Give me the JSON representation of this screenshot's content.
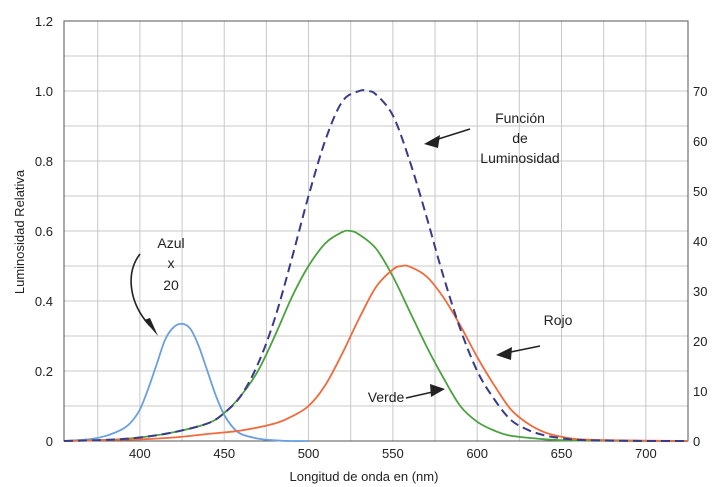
{
  "chart_data": {
    "type": "line",
    "xlabel": "Longitud de onda en (nm)",
    "ylabel": "Luminosidad Relativa",
    "xlim": [
      355,
      725
    ],
    "ylim": [
      0,
      1.2
    ],
    "y2lim": [
      0,
      84
    ],
    "grid": true,
    "x_ticks": [
      400,
      450,
      500,
      550,
      600,
      650,
      700
    ],
    "y_ticks": [
      0,
      0.2,
      0.4,
      0.6,
      0.8,
      1.0,
      1.2
    ],
    "y_tick_labels": [
      "0",
      "0.2",
      "0.4",
      "0.6",
      "0.8",
      "1.0",
      "1.2"
    ],
    "y2_ticks": [
      0,
      10,
      20,
      30,
      40,
      50,
      60,
      70
    ],
    "series": [
      {
        "key": "azul",
        "color": "#6a9fe0",
        "dash": false,
        "x": [
          355,
          370,
          380,
          390,
          395,
          400,
          405,
          410,
          415,
          420,
          425,
          430,
          435,
          440,
          445,
          450,
          455,
          460,
          470,
          480,
          490,
          500
        ],
        "y": [
          0.0,
          0.005,
          0.015,
          0.035,
          0.055,
          0.09,
          0.15,
          0.22,
          0.29,
          0.325,
          0.335,
          0.32,
          0.27,
          0.2,
          0.13,
          0.075,
          0.04,
          0.02,
          0.007,
          0.002,
          0.0,
          0.0
        ]
      },
      {
        "key": "verde",
        "color": "#4aa23f",
        "dash": false,
        "x": [
          355,
          380,
          400,
          420,
          440,
          450,
          460,
          470,
          480,
          490,
          500,
          510,
          520,
          525,
          530,
          540,
          550,
          560,
          570,
          580,
          590,
          600,
          610,
          620,
          640,
          660,
          700,
          725
        ],
        "y": [
          0.0,
          0.003,
          0.01,
          0.025,
          0.05,
          0.08,
          0.13,
          0.2,
          0.3,
          0.41,
          0.5,
          0.565,
          0.597,
          0.6,
          0.59,
          0.55,
          0.47,
          0.37,
          0.27,
          0.18,
          0.1,
          0.055,
          0.03,
          0.015,
          0.005,
          0.001,
          0.0,
          0.0
        ]
      },
      {
        "key": "rojo",
        "color": "#f06a3c",
        "dash": false,
        "x": [
          355,
          400,
          420,
          440,
          460,
          480,
          490,
          500,
          510,
          520,
          530,
          540,
          550,
          555,
          560,
          570,
          580,
          590,
          600,
          610,
          620,
          630,
          640,
          650,
          660,
          680,
          700,
          725
        ],
        "y": [
          0.0,
          0.005,
          0.01,
          0.02,
          0.03,
          0.05,
          0.07,
          0.1,
          0.16,
          0.25,
          0.35,
          0.44,
          0.49,
          0.5,
          0.498,
          0.47,
          0.41,
          0.33,
          0.24,
          0.16,
          0.09,
          0.05,
          0.025,
          0.012,
          0.005,
          0.002,
          0.001,
          0.0
        ]
      },
      {
        "key": "luminosidad",
        "color": "#3a3a8a",
        "dash": true,
        "x": [
          355,
          380,
          400,
          420,
          440,
          450,
          460,
          470,
          480,
          490,
          500,
          510,
          520,
          530,
          535,
          540,
          550,
          560,
          570,
          580,
          590,
          600,
          610,
          620,
          630,
          640,
          650,
          660,
          680,
          700,
          725
        ],
        "y": [
          0.0,
          0.003,
          0.01,
          0.025,
          0.05,
          0.08,
          0.13,
          0.22,
          0.35,
          0.52,
          0.7,
          0.86,
          0.97,
          1.0,
          1.0,
          0.99,
          0.93,
          0.8,
          0.64,
          0.47,
          0.32,
          0.2,
          0.12,
          0.06,
          0.032,
          0.016,
          0.008,
          0.003,
          0.001,
          0.0,
          0.0
        ]
      }
    ],
    "annotations": {
      "azul": [
        "Azul",
        "x",
        "20"
      ],
      "luminosidad": [
        "Función",
        "de",
        "Luminosidad"
      ],
      "rojo": "Rojo",
      "verde": "Verde"
    }
  }
}
